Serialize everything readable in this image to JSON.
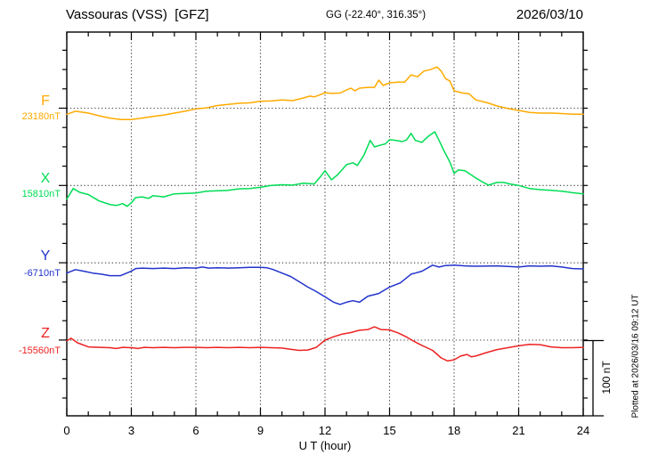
{
  "header": {
    "station_title": "Vassouras (VSS)  [GFZ]",
    "gg_coords": "GG (-22.40°, 316.35°)",
    "date": "2026/03/10"
  },
  "axis": {
    "xlabel": "U T (hour)",
    "x_tick_labels": [
      "0",
      "3",
      "6",
      "9",
      "12",
      "15",
      "18",
      "21",
      "24"
    ]
  },
  "sidebar_right": {
    "scale_label": "100 nT",
    "plotted_at": "Plotted at 2026/03/16 09:12 UT"
  },
  "chart_data": {
    "type": "line",
    "title": "Vassouras (VSS)  [GFZ]",
    "subtitle": "GG (-22.40°, 316.35°)",
    "date": "2026/03/10",
    "xlabel": "U T (hour)",
    "x_unit": "hour (UT)",
    "x_range": [
      0,
      24
    ],
    "x_tick_interval_major": 3,
    "x_tick_interval_minor": 1,
    "grid": "dotted vertical lines every 3 h, dotted horizontal baseline per component",
    "scale_bar": {
      "label": "100 nT",
      "nT": 100
    },
    "legend_position": "left margin, one colored letter + baseline value per trace",
    "series": [
      {
        "name": "F",
        "color": "#ffaa00",
        "baseline_label": "23180nT",
        "baseline_nT": 23180,
        "points_hour_dnT": [
          [
            0,
            -8
          ],
          [
            0.4,
            -4
          ],
          [
            1,
            -6.5
          ],
          [
            1.5,
            -10
          ],
          [
            2,
            -13
          ],
          [
            2.5,
            -15
          ],
          [
            3,
            -15
          ],
          [
            3.5,
            -13
          ],
          [
            4,
            -11
          ],
          [
            4.5,
            -9
          ],
          [
            5,
            -6.5
          ],
          [
            5.5,
            -4
          ],
          [
            6,
            -1
          ],
          [
            6.5,
            0.5
          ],
          [
            7,
            3.5
          ],
          [
            7.5,
            5
          ],
          [
            8,
            6.5
          ],
          [
            8.5,
            7
          ],
          [
            9,
            9
          ],
          [
            9.5,
            9.5
          ],
          [
            10,
            11
          ],
          [
            10.5,
            10
          ],
          [
            11,
            13.5
          ],
          [
            11.3,
            16
          ],
          [
            11.5,
            15
          ],
          [
            11.8,
            18
          ],
          [
            12,
            20.5
          ],
          [
            12.3,
            19.5
          ],
          [
            12.7,
            20
          ],
          [
            13,
            24
          ],
          [
            13.2,
            26.5
          ],
          [
            13.4,
            23
          ],
          [
            13.6,
            26.5
          ],
          [
            14,
            27.5
          ],
          [
            14.3,
            27.5
          ],
          [
            14.5,
            37
          ],
          [
            14.7,
            30
          ],
          [
            15,
            33.5
          ],
          [
            15.4,
            34.5
          ],
          [
            15.7,
            34.5
          ],
          [
            16,
            44
          ],
          [
            16.3,
            41.5
          ],
          [
            16.6,
            49
          ],
          [
            16.9,
            51
          ],
          [
            17.2,
            54.5
          ],
          [
            17.4,
            49
          ],
          [
            17.6,
            39
          ],
          [
            17.8,
            36
          ],
          [
            18,
            23
          ],
          [
            18.4,
            20
          ],
          [
            18.7,
            19
          ],
          [
            19,
            11
          ],
          [
            19.5,
            7.5
          ],
          [
            20,
            3
          ],
          [
            20.5,
            -0.5
          ],
          [
            21,
            -3
          ],
          [
            21.5,
            -5.5
          ],
          [
            22,
            -6.5
          ],
          [
            22.5,
            -6.5
          ],
          [
            23,
            -7
          ],
          [
            23.5,
            -8
          ],
          [
            24,
            -8
          ]
        ]
      },
      {
        "name": "X",
        "color": "#00dd55",
        "baseline_label": "15810nT",
        "baseline_nT": 15810,
        "points_hour_dnT": [
          [
            0,
            -18
          ],
          [
            0.3,
            -4
          ],
          [
            0.6,
            -9
          ],
          [
            1,
            -12
          ],
          [
            1.5,
            -20.5
          ],
          [
            2,
            -25
          ],
          [
            2.3,
            -26.5
          ],
          [
            2.6,
            -24
          ],
          [
            2.8,
            -27.5
          ],
          [
            3,
            -23
          ],
          [
            3.2,
            -16
          ],
          [
            3.5,
            -15
          ],
          [
            3.8,
            -17
          ],
          [
            4,
            -13.5
          ],
          [
            4.5,
            -15
          ],
          [
            5,
            -11
          ],
          [
            5.5,
            -10.5
          ],
          [
            6,
            -10
          ],
          [
            6.5,
            -7.5
          ],
          [
            7,
            -7
          ],
          [
            7.5,
            -6.5
          ],
          [
            8,
            -4.5
          ],
          [
            8.5,
            -4
          ],
          [
            9,
            -2.5
          ],
          [
            9.5,
            0
          ],
          [
            10,
            1
          ],
          [
            10.5,
            0.5
          ],
          [
            11,
            3
          ],
          [
            11.5,
            2
          ],
          [
            11.8,
            12
          ],
          [
            12,
            19.5
          ],
          [
            12.3,
            7.5
          ],
          [
            12.6,
            14.5
          ],
          [
            13,
            27.5
          ],
          [
            13.3,
            30
          ],
          [
            13.5,
            26.5
          ],
          [
            13.8,
            39.5
          ],
          [
            14.1,
            59.5
          ],
          [
            14.3,
            51
          ],
          [
            14.6,
            53.5
          ],
          [
            14.8,
            55
          ],
          [
            15,
            60.5
          ],
          [
            15.3,
            59.5
          ],
          [
            15.6,
            58
          ],
          [
            15.8,
            60.5
          ],
          [
            16,
            69
          ],
          [
            16.2,
            59.5
          ],
          [
            16.5,
            57
          ],
          [
            16.8,
            65
          ],
          [
            17.1,
            71
          ],
          [
            17.3,
            59.5
          ],
          [
            17.5,
            47.5
          ],
          [
            17.8,
            31
          ],
          [
            18,
            16
          ],
          [
            18.2,
            20.5
          ],
          [
            18.5,
            19.5
          ],
          [
            19,
            10
          ],
          [
            19.3,
            5
          ],
          [
            19.6,
            0.5
          ],
          [
            20,
            4
          ],
          [
            20.3,
            4
          ],
          [
            20.6,
            2
          ],
          [
            21,
            0
          ],
          [
            21.5,
            -4
          ],
          [
            22,
            -5.5
          ],
          [
            22.5,
            -6.5
          ],
          [
            23,
            -7.5
          ],
          [
            23.5,
            -9.5
          ],
          [
            24,
            -11
          ]
        ]
      },
      {
        "name": "Y",
        "color": "#2233cc",
        "baseline_label": "-6710nT",
        "baseline_nT": -6710,
        "points_hour_dnT": [
          [
            0,
            -13.5
          ],
          [
            0.4,
            -9
          ],
          [
            0.8,
            -11
          ],
          [
            1.2,
            -13.5
          ],
          [
            1.6,
            -15
          ],
          [
            2,
            -17
          ],
          [
            2.5,
            -17
          ],
          [
            3,
            -11
          ],
          [
            3.2,
            -7.5
          ],
          [
            3.5,
            -7
          ],
          [
            4,
            -7.5
          ],
          [
            4.5,
            -7
          ],
          [
            5,
            -7.5
          ],
          [
            5.5,
            -6.5
          ],
          [
            6,
            -7
          ],
          [
            6.3,
            -5.5
          ],
          [
            6.6,
            -7
          ],
          [
            7,
            -6.5
          ],
          [
            7.5,
            -7
          ],
          [
            8,
            -6.5
          ],
          [
            8.5,
            -6
          ],
          [
            9,
            -6
          ],
          [
            9.3,
            -6.5
          ],
          [
            9.6,
            -9
          ],
          [
            10,
            -13.5
          ],
          [
            10.4,
            -18
          ],
          [
            10.8,
            -25
          ],
          [
            11.2,
            -32
          ],
          [
            11.6,
            -38
          ],
          [
            12,
            -45
          ],
          [
            12.4,
            -52
          ],
          [
            12.7,
            -55
          ],
          [
            13,
            -52
          ],
          [
            13.3,
            -50
          ],
          [
            13.6,
            -52
          ],
          [
            14,
            -44
          ],
          [
            14.5,
            -40.5
          ],
          [
            15,
            -32
          ],
          [
            15.5,
            -26.5
          ],
          [
            16,
            -15
          ],
          [
            16.2,
            -13.5
          ],
          [
            16.5,
            -11
          ],
          [
            17,
            -3
          ],
          [
            17.3,
            -5.5
          ],
          [
            17.6,
            -3.5
          ],
          [
            18,
            -3
          ],
          [
            18.5,
            -4
          ],
          [
            19,
            -4.5
          ],
          [
            20,
            -4
          ],
          [
            21,
            -5.5
          ],
          [
            21.5,
            -4
          ],
          [
            22,
            -4.5
          ],
          [
            22.5,
            -4
          ],
          [
            23,
            -5.5
          ],
          [
            23.5,
            -7.5
          ],
          [
            24,
            -8
          ]
        ]
      },
      {
        "name": "Z",
        "color": "#ee2222",
        "baseline_label": "-15560nT",
        "baseline_nT": -15560,
        "points_hour_dnT": [
          [
            0,
            -1
          ],
          [
            0.2,
            2.5
          ],
          [
            0.5,
            -3.5
          ],
          [
            1,
            -9
          ],
          [
            1.5,
            -9.5
          ],
          [
            2,
            -10
          ],
          [
            2.3,
            -11
          ],
          [
            2.6,
            -9.5
          ],
          [
            3,
            -10
          ],
          [
            3.3,
            -11
          ],
          [
            3.6,
            -9.5
          ],
          [
            4,
            -10
          ],
          [
            4.5,
            -9.5
          ],
          [
            5,
            -10
          ],
          [
            5.5,
            -9.5
          ],
          [
            6,
            -9.5
          ],
          [
            6.5,
            -10
          ],
          [
            7,
            -9.5
          ],
          [
            7.5,
            -10
          ],
          [
            8,
            -9.5
          ],
          [
            8.5,
            -10
          ],
          [
            9,
            -9.5
          ],
          [
            9.5,
            -10
          ],
          [
            10,
            -10.5
          ],
          [
            10.4,
            -12
          ],
          [
            10.8,
            -13.5
          ],
          [
            11.2,
            -13
          ],
          [
            11.6,
            -9.5
          ],
          [
            12,
            0
          ],
          [
            12.4,
            4.5
          ],
          [
            12.8,
            8
          ],
          [
            13.2,
            10
          ],
          [
            13.6,
            13
          ],
          [
            14,
            14
          ],
          [
            14.3,
            17.5
          ],
          [
            14.6,
            14
          ],
          [
            15,
            13.5
          ],
          [
            15.4,
            9.5
          ],
          [
            15.8,
            4
          ],
          [
            16.1,
            -1
          ],
          [
            16.5,
            -7
          ],
          [
            17,
            -13.5
          ],
          [
            17.4,
            -23.5
          ],
          [
            17.7,
            -27.5
          ],
          [
            18,
            -26
          ],
          [
            18.3,
            -21
          ],
          [
            18.6,
            -19
          ],
          [
            18.8,
            -22
          ],
          [
            19,
            -21
          ],
          [
            19.5,
            -16.5
          ],
          [
            20,
            -12.5
          ],
          [
            20.5,
            -10
          ],
          [
            21,
            -7.5
          ],
          [
            21.5,
            -5.5
          ],
          [
            22,
            -6
          ],
          [
            22.5,
            -9
          ],
          [
            23,
            -10
          ],
          [
            23.5,
            -10
          ],
          [
            24,
            -9.5
          ]
        ]
      }
    ]
  }
}
